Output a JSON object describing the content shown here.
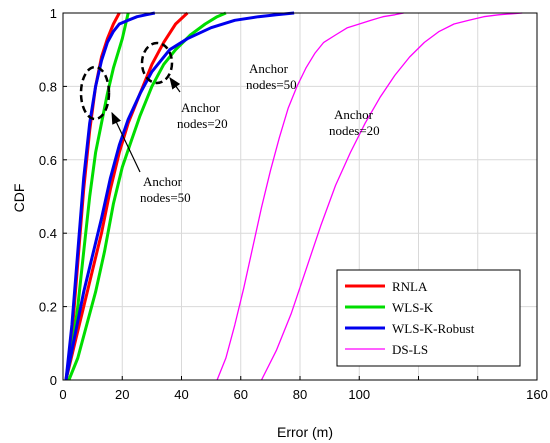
{
  "chart_data": {
    "type": "line",
    "xlabel": "Error (m)",
    "ylabel": "CDF",
    "xlim": [
      0,
      160
    ],
    "ylim": [
      0,
      1
    ],
    "xticks": [
      0,
      20,
      40,
      60,
      80,
      100,
      120,
      140,
      160
    ],
    "yticks": [
      0,
      0.2,
      0.4,
      0.6,
      0.8,
      1
    ],
    "xtick_labels": [
      "0",
      "20",
      "40",
      "60",
      "80",
      "100",
      "",
      "",
      "160"
    ],
    "ytick_labels": [
      "0",
      "0.2",
      "0.4",
      "0.6",
      "0.8",
      "1"
    ],
    "grid": true,
    "legend_position": "bottom-right",
    "series": [
      {
        "name": "RNLA",
        "color": "#ff0000",
        "width": 3,
        "curves": [
          {
            "x": [
              1,
              3,
              5,
              7,
              9,
              11,
              13,
              15,
              17,
              19
            ],
            "y": [
              0,
              0.12,
              0.32,
              0.52,
              0.68,
              0.8,
              0.88,
              0.93,
              0.97,
              1
            ]
          },
          {
            "x": [
              1,
              4,
              7,
              10,
              13,
              16,
              19,
              22,
              26,
              30,
              34,
              38,
              42
            ],
            "y": [
              0,
              0.1,
              0.2,
              0.3,
              0.4,
              0.52,
              0.62,
              0.7,
              0.78,
              0.86,
              0.92,
              0.97,
              1
            ]
          }
        ]
      },
      {
        "name": "WLS-K",
        "color": "#00dd00",
        "width": 3,
        "curves": [
          {
            "x": [
              1,
              3,
              5,
              7,
              9,
              11,
              13,
              15,
              17,
              20,
              22
            ],
            "y": [
              0,
              0.08,
              0.2,
              0.35,
              0.5,
              0.62,
              0.7,
              0.78,
              0.85,
              0.93,
              1
            ]
          },
          {
            "x": [
              2,
              5,
              8,
              11,
              14,
              17,
              20,
              23,
              26,
              30,
              34,
              38,
              43,
              48,
              52,
              55
            ],
            "y": [
              0,
              0.06,
              0.15,
              0.24,
              0.35,
              0.48,
              0.58,
              0.65,
              0.72,
              0.8,
              0.86,
              0.9,
              0.94,
              0.97,
              0.99,
              1
            ]
          }
        ]
      },
      {
        "name": "WLS-K-Robust",
        "color": "#0000ee",
        "width": 3,
        "curves": [
          {
            "x": [
              1,
              3,
              5,
              7,
              9,
              11,
              13,
              15,
              17,
              19,
              22,
              25,
              28,
              31
            ],
            "y": [
              0,
              0.15,
              0.35,
              0.55,
              0.7,
              0.8,
              0.87,
              0.92,
              0.95,
              0.97,
              0.98,
              0.99,
              0.995,
              1
            ]
          },
          {
            "x": [
              1,
              4,
              7,
              10,
              13,
              16,
              19,
              22,
              26,
              30,
              36,
              42,
              50,
              58,
              66,
              72,
              78
            ],
            "y": [
              0,
              0.12,
              0.24,
              0.34,
              0.44,
              0.55,
              0.64,
              0.71,
              0.78,
              0.84,
              0.9,
              0.93,
              0.96,
              0.98,
              0.99,
              0.995,
              1
            ]
          }
        ]
      },
      {
        "name": "DS-LS",
        "color": "#ff00ff",
        "width": 1.3,
        "curves": [
          {
            "x": [
              52,
              55,
              58,
              61,
              64,
              67,
              70,
              73,
              76,
              79,
              82,
              85,
              88,
              92,
              96,
              100,
              104,
              108,
              112,
              115
            ],
            "y": [
              0,
              0.06,
              0.15,
              0.25,
              0.36,
              0.47,
              0.57,
              0.66,
              0.74,
              0.8,
              0.85,
              0.89,
              0.92,
              0.94,
              0.96,
              0.97,
              0.98,
              0.99,
              0.995,
              1
            ]
          },
          {
            "x": [
              67,
              72,
              77,
              82,
              87,
              92,
              97,
              102,
              107,
              112,
              117,
              122,
              127,
              132,
              137,
              142,
              147,
              152,
              155
            ],
            "y": [
              0,
              0.08,
              0.18,
              0.3,
              0.42,
              0.53,
              0.62,
              0.7,
              0.77,
              0.83,
              0.88,
              0.92,
              0.95,
              0.97,
              0.98,
              0.99,
              0.995,
              0.998,
              1
            ]
          }
        ]
      }
    ],
    "annotations": [
      {
        "lines": [
          "Anchor",
          "nodes=50"
        ]
      },
      {
        "lines": [
          "Anchor",
          "nodes=20"
        ]
      },
      {
        "lines": [
          "Anchor",
          "nodes=50"
        ]
      },
      {
        "lines": [
          "Anchor",
          "nodes=20"
        ]
      }
    ]
  }
}
